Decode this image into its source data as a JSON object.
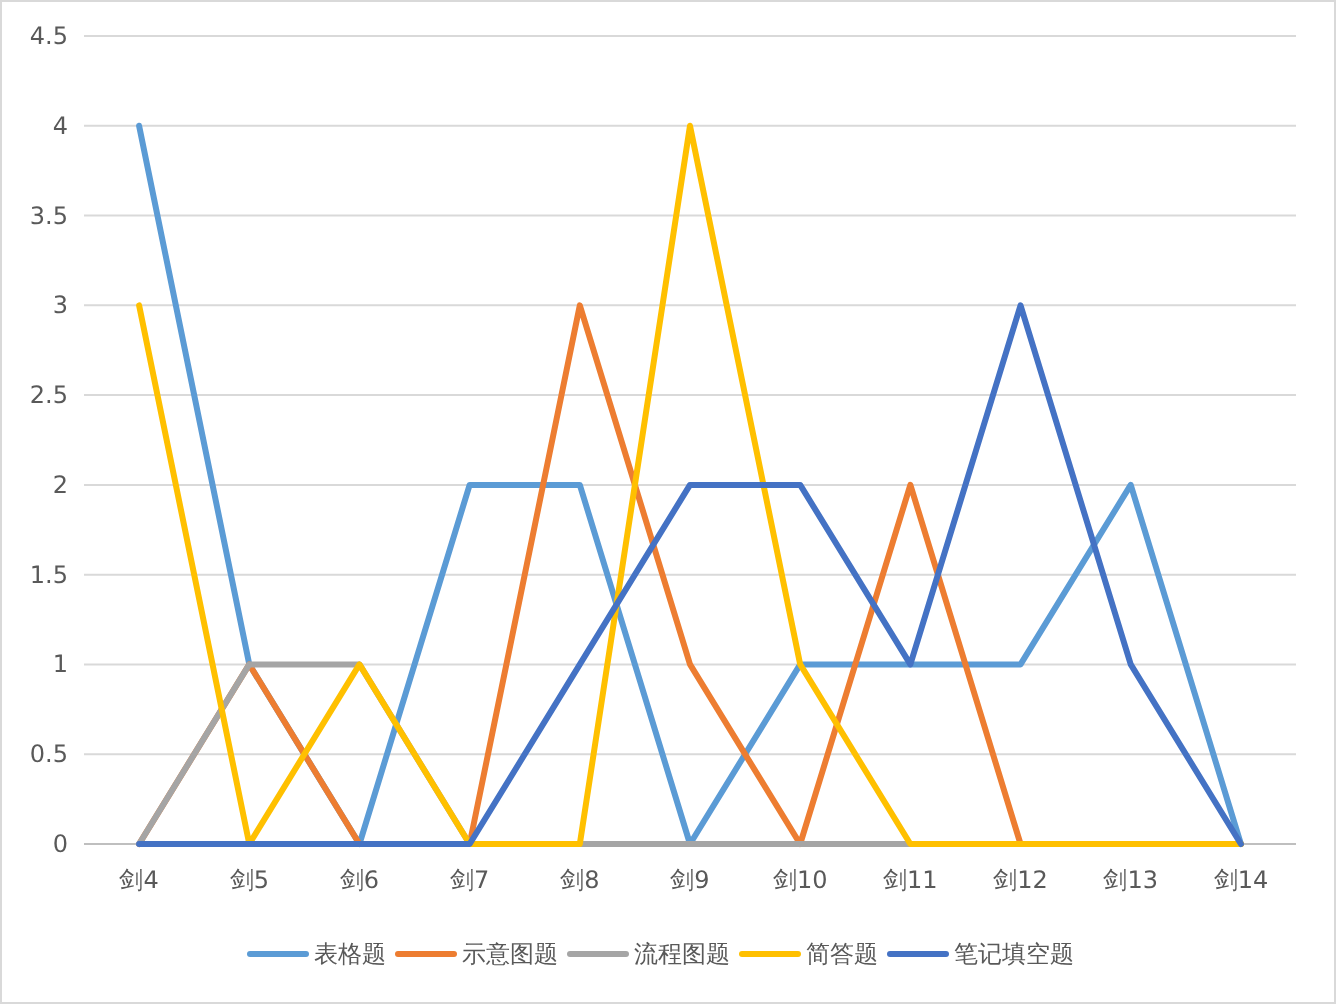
{
  "chart_data": {
    "type": "line",
    "categories": [
      "剑4",
      "剑5",
      "剑6",
      "剑7",
      "剑8",
      "剑9",
      "剑10",
      "剑11",
      "剑12",
      "剑13",
      "剑14"
    ],
    "series": [
      {
        "name": "表格题",
        "color": "#5b9bd5",
        "values": [
          4,
          1,
          0,
          2,
          2,
          0,
          1,
          1,
          1,
          2,
          0
        ]
      },
      {
        "name": "示意图题",
        "color": "#ed7d31",
        "values": [
          0,
          1,
          0,
          0,
          3,
          1,
          0,
          2,
          0,
          0,
          0
        ]
      },
      {
        "name": "流程图题",
        "color": "#a5a5a5",
        "values": [
          0,
          1,
          1,
          0,
          0,
          0,
          0,
          0,
          0,
          0,
          0
        ]
      },
      {
        "name": "简答题",
        "color": "#ffc000",
        "values": [
          3,
          0,
          1,
          0,
          0,
          4,
          1,
          0,
          0,
          0,
          0
        ]
      },
      {
        "name": "笔记填空题",
        "color": "#4472c4",
        "values": [
          0,
          0,
          0,
          0,
          1,
          2,
          2,
          1,
          3,
          1,
          0
        ]
      }
    ],
    "ylim": [
      0,
      4.5
    ],
    "yticks": [
      0,
      0.5,
      1,
      1.5,
      2,
      2.5,
      3,
      3.5,
      4,
      4.5
    ],
    "grid": "y",
    "legend": "bottom",
    "marker": "none",
    "line_style": "solid"
  }
}
